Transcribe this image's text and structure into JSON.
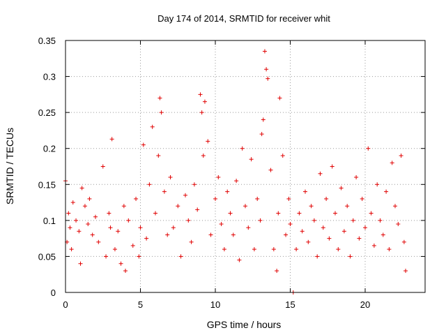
{
  "chart_data": {
    "type": "scatter",
    "title": "Day 174 of 2014, SRMTID for receiver whit",
    "xlabel": "GPS time / hours",
    "ylabel": "SRMTID / TECUs",
    "xlim": [
      0,
      24
    ],
    "ylim": [
      0,
      0.35
    ],
    "xticks": [
      0,
      5,
      10,
      15,
      20
    ],
    "xtick_labels": [
      "0",
      "5",
      "10",
      "15",
      "20"
    ],
    "yticks": [
      0,
      0.05,
      0.1,
      0.15,
      0.2,
      0.25,
      0.3,
      0.35
    ],
    "ytick_labels": [
      "0",
      "0.05",
      "0.1",
      "0.15",
      "0.2",
      "0.25",
      "0.3",
      "0.35"
    ],
    "grid": true,
    "marker": "+",
    "marker_color": "#e00000",
    "series": [
      {
        "name": "SRMTID",
        "x": [
          0.0,
          0.1,
          0.2,
          0.3,
          0.4,
          0.5,
          0.7,
          0.9,
          1.0,
          1.1,
          1.3,
          1.5,
          1.6,
          1.8,
          2.0,
          2.2,
          2.5,
          2.7,
          2.9,
          3.0,
          3.1,
          3.3,
          3.5,
          3.7,
          3.9,
          4.0,
          4.2,
          4.5,
          4.7,
          4.9,
          5.0,
          5.2,
          5.4,
          5.6,
          5.8,
          6.0,
          6.2,
          6.3,
          6.4,
          6.6,
          6.8,
          7.0,
          7.2,
          7.5,
          7.7,
          8.0,
          8.2,
          8.4,
          8.6,
          8.8,
          9.0,
          9.1,
          9.2,
          9.3,
          9.5,
          9.7,
          10.0,
          10.2,
          10.4,
          10.6,
          10.8,
          11.0,
          11.2,
          11.4,
          11.6,
          11.8,
          12.0,
          12.2,
          12.4,
          12.6,
          12.8,
          13.0,
          13.1,
          13.2,
          13.3,
          13.4,
          13.5,
          13.7,
          13.9,
          14.1,
          14.2,
          14.3,
          14.5,
          14.7,
          14.9,
          15.0,
          15.2,
          15.4,
          15.6,
          15.8,
          16.0,
          16.2,
          16.4,
          16.6,
          16.8,
          17.0,
          17.2,
          17.4,
          17.6,
          17.8,
          18.0,
          18.2,
          18.4,
          18.6,
          18.8,
          19.0,
          19.2,
          19.4,
          19.6,
          19.8,
          20.0,
          20.2,
          20.4,
          20.6,
          20.8,
          21.0,
          21.2,
          21.4,
          21.6,
          21.8,
          22.0,
          22.2,
          22.4,
          22.6,
          22.7
        ],
        "y": [
          0.155,
          0.07,
          0.11,
          0.09,
          0.06,
          0.125,
          0.1,
          0.085,
          0.04,
          0.145,
          0.12,
          0.095,
          0.13,
          0.08,
          0.105,
          0.07,
          0.175,
          0.05,
          0.11,
          0.09,
          0.213,
          0.06,
          0.085,
          0.04,
          0.12,
          0.03,
          0.1,
          0.065,
          0.13,
          0.05,
          0.09,
          0.205,
          0.075,
          0.15,
          0.23,
          0.11,
          0.19,
          0.27,
          0.25,
          0.14,
          0.08,
          0.16,
          0.09,
          0.12,
          0.05,
          0.135,
          0.1,
          0.07,
          0.15,
          0.115,
          0.275,
          0.25,
          0.19,
          0.265,
          0.21,
          0.08,
          0.13,
          0.16,
          0.095,
          0.06,
          0.14,
          0.11,
          0.08,
          0.155,
          0.045,
          0.2,
          0.12,
          0.09,
          0.185,
          0.06,
          0.13,
          0.1,
          0.22,
          0.24,
          0.335,
          0.31,
          0.297,
          0.17,
          0.06,
          0.03,
          0.11,
          0.27,
          0.19,
          0.08,
          0.13,
          0.095,
          0.0,
          0.06,
          0.11,
          0.085,
          0.14,
          0.07,
          0.12,
          0.1,
          0.05,
          0.165,
          0.09,
          0.13,
          0.075,
          0.175,
          0.11,
          0.06,
          0.145,
          0.085,
          0.12,
          0.05,
          0.1,
          0.16,
          0.075,
          0.13,
          0.09,
          0.2,
          0.11,
          0.065,
          0.15,
          0.1,
          0.08,
          0.14,
          0.06,
          0.18,
          0.12,
          0.095,
          0.19,
          0.07,
          0.03
        ]
      }
    ]
  }
}
